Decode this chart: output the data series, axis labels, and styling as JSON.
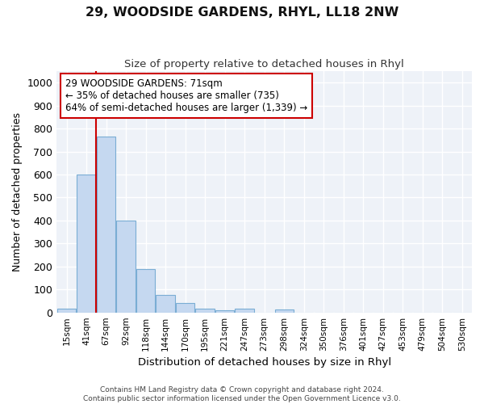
{
  "title": "29, WOODSIDE GARDENS, RHYL, LL18 2NW",
  "subtitle": "Size of property relative to detached houses in Rhyl",
  "xlabel": "Distribution of detached houses by size in Rhyl",
  "ylabel": "Number of detached properties",
  "bar_labels": [
    "15sqm",
    "41sqm",
    "67sqm",
    "92sqm",
    "118sqm",
    "144sqm",
    "170sqm",
    "195sqm",
    "221sqm",
    "247sqm",
    "273sqm",
    "298sqm",
    "324sqm",
    "350sqm",
    "376sqm",
    "401sqm",
    "427sqm",
    "453sqm",
    "479sqm",
    "504sqm",
    "530sqm"
  ],
  "bar_values": [
    15,
    600,
    765,
    400,
    190,
    75,
    40,
    18,
    10,
    15,
    0,
    12,
    0,
    0,
    0,
    0,
    0,
    0,
    0,
    0,
    0
  ],
  "bar_color": "#c5d8f0",
  "bar_edgecolor": "#7aadd4",
  "vline_x": 1.5,
  "vline_color": "#cc0000",
  "ylim": [
    0,
    1050
  ],
  "yticks": [
    0,
    100,
    200,
    300,
    400,
    500,
    600,
    700,
    800,
    900,
    1000
  ],
  "annotation_text": "29 WOODSIDE GARDENS: 71sqm\n← 35% of detached houses are smaller (735)\n64% of semi-detached houses are larger (1,339) →",
  "annotation_box_facecolor": "#ffffff",
  "annotation_box_edgecolor": "#cc0000",
  "bg_color": "#ffffff",
  "plot_bg_color": "#eef2f8",
  "grid_color": "#ffffff",
  "footer_line1": "Contains HM Land Registry data © Crown copyright and database right 2024.",
  "footer_line2": "Contains public sector information licensed under the Open Government Licence v3.0."
}
